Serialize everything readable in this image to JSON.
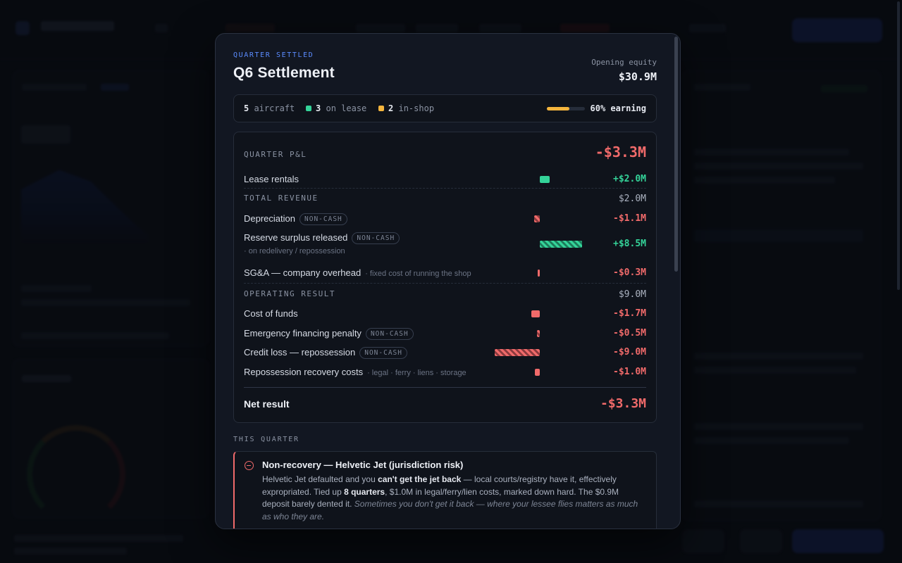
{
  "modal": {
    "kicker": "QUARTER SETTLED",
    "title": "Q6 Settlement",
    "opening_equity_label": "Opening equity",
    "opening_equity_value": "$30.9M"
  },
  "fleet": {
    "aircraft_count": "5",
    "aircraft_label": "aircraft",
    "on_lease_count": "3",
    "on_lease_label": "on lease",
    "in_shop_count": "2",
    "in_shop_label": "in-shop",
    "earning_label": "60% earning",
    "earning_fraction": 0.6,
    "colors": {
      "on_lease": "#34d399",
      "in_shop": "#f5b53d"
    }
  },
  "pnl": {
    "header": "QUARTER P&L",
    "total": "-$3.3M",
    "rows": [
      {
        "label": "Lease rentals",
        "badge": "",
        "sub": "",
        "note": "",
        "value": "+$2.0M",
        "amount": 2.0,
        "style": "solid"
      },
      {
        "label": "Depreciation",
        "badge": "NON-CASH",
        "sub": "",
        "note": "",
        "value": "-$1.1M",
        "amount": -1.1,
        "style": "hatch"
      },
      {
        "label": "Reserve surplus released",
        "badge": "NON-CASH",
        "sub": "",
        "note": "· on redelivery / repossession",
        "value": "+$8.5M",
        "amount": 8.5,
        "style": "hatch"
      },
      {
        "label": "SG&A — company overhead",
        "badge": "",
        "sub": "· fixed cost of running the shop",
        "note": "",
        "value": "-$0.3M",
        "amount": -0.3,
        "style": "solid"
      },
      {
        "label": "Cost of funds",
        "badge": "",
        "sub": "",
        "note": "",
        "value": "-$1.7M",
        "amount": -1.7,
        "style": "solid"
      },
      {
        "label": "Emergency financing penalty",
        "badge": "NON-CASH",
        "sub": "",
        "note": "",
        "value": "-$0.5M",
        "amount": -0.5,
        "style": "hatch"
      },
      {
        "label": "Credit loss — repossession",
        "badge": "NON-CASH",
        "sub": "",
        "note": "",
        "value": "-$9.0M",
        "amount": -9.0,
        "style": "hatch"
      },
      {
        "label": "Repossession recovery costs",
        "badge": "",
        "sub": "· legal · ferry · liens · storage",
        "note": "",
        "value": "-$1.0M",
        "amount": -1.0,
        "style": "solid"
      }
    ],
    "total_revenue_label": "TOTAL REVENUE",
    "total_revenue_value": "$2.0M",
    "operating_result_label": "OPERATING RESULT",
    "operating_result_value": "$9.0M",
    "net_label": "Net result",
    "net_value": "-$3.3M"
  },
  "this_quarter": {
    "header": "THIS QUARTER",
    "event_icon": "minus-circle-icon",
    "event_title": "Non-recovery — Helvetic Jet (jurisdiction risk)",
    "body_1": "Helvetic Jet defaulted and you ",
    "body_bold_1": "can't get the jet back",
    "body_2": " — local courts/registry have it, effectively expropriated. Tied up ",
    "body_bold_2": "8 quarters",
    "body_3": ", $1.0M in legal/ferry/lien costs, marked down hard. The $0.9M deposit barely dented it. ",
    "body_italic": "Sometimes you don't get it back — where your lessee flies matters as much as who they are."
  },
  "colors": {
    "positive": "#34d399",
    "negative": "#f06a6a",
    "accent": "#5b8cff"
  }
}
